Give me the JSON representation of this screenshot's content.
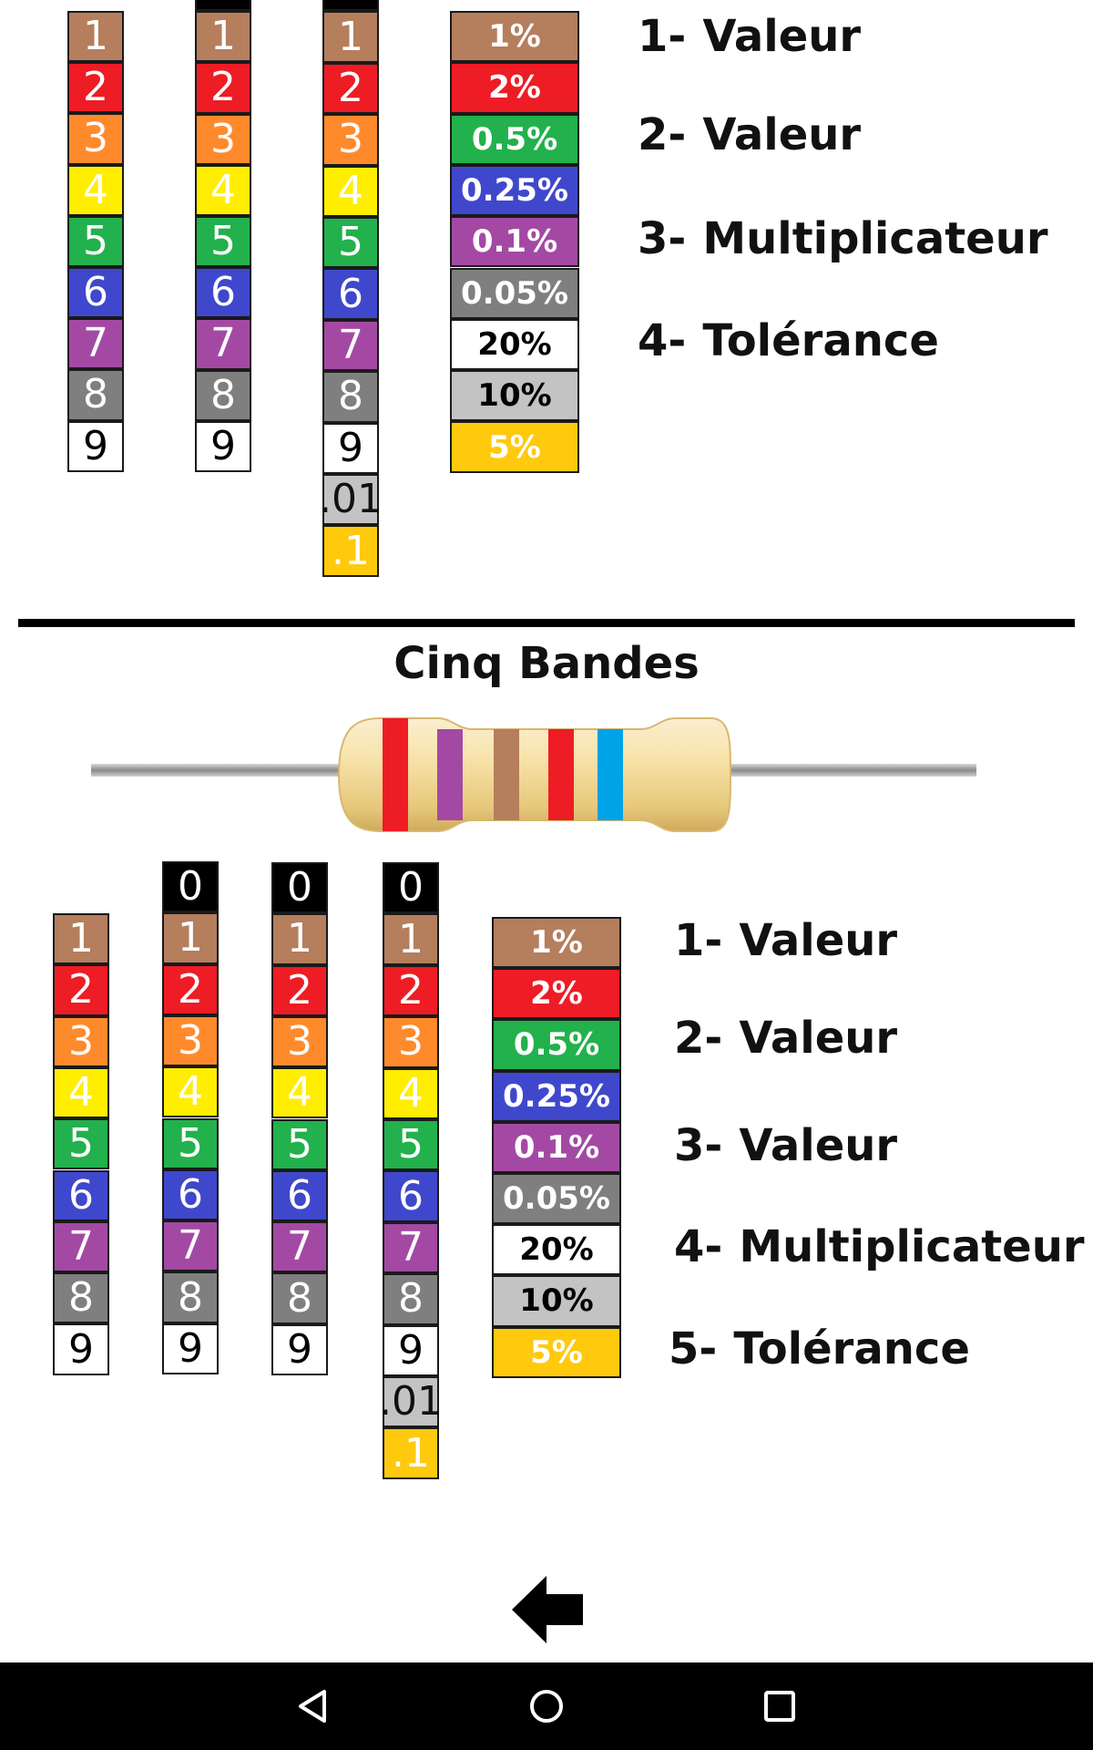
{
  "digit_bands": [
    {
      "label": "0",
      "bg": "#000000",
      "fg": "#ffffff"
    },
    {
      "label": "1",
      "bg": "#b57e5d",
      "fg": "#ffffff"
    },
    {
      "label": "2",
      "bg": "#ee1c25",
      "fg": "#ffffff"
    },
    {
      "label": "3",
      "bg": "#ff8a2c",
      "fg": "#ffffff"
    },
    {
      "label": "4",
      "bg": "#ffee00",
      "fg": "#ffffff"
    },
    {
      "label": "5",
      "bg": "#22b14c",
      "fg": "#ffffff"
    },
    {
      "label": "6",
      "bg": "#3f48cc",
      "fg": "#ffffff"
    },
    {
      "label": "7",
      "bg": "#a349a4",
      "fg": "#ffffff"
    },
    {
      "label": "8",
      "bg": "#7f7f7f",
      "fg": "#ffffff"
    },
    {
      "label": "9",
      "bg": "#ffffff",
      "fg": "#000000"
    }
  ],
  "multiplier_extra_bands": [
    {
      "label": ".01",
      "bg": "#c3c3c3",
      "fg": "#111111"
    },
    {
      "label": ".1",
      "bg": "#ffc90e",
      "fg": "#ffffff"
    }
  ],
  "tolerance_bands": [
    {
      "label": "1%",
      "bg": "#b57e5d",
      "fg": "#ffffff"
    },
    {
      "label": "2%",
      "bg": "#ee1c25",
      "fg": "#ffffff"
    },
    {
      "label": "0.5%",
      "bg": "#22b14c",
      "fg": "#ffffff"
    },
    {
      "label": "0.25%",
      "bg": "#3f48cc",
      "fg": "#ffffff"
    },
    {
      "label": "0.1%",
      "bg": "#a349a4",
      "fg": "#ffffff"
    },
    {
      "label": "0.05%",
      "bg": "#7f7f7f",
      "fg": "#ffffff"
    },
    {
      "label": "20%",
      "bg": "#ffffff",
      "fg": "#000000"
    },
    {
      "label": "10%",
      "bg": "#c3c3c3",
      "fg": "#000000"
    },
    {
      "label": "5%",
      "bg": "#ffc90e",
      "fg": "#ffffff"
    }
  ],
  "four_band": {
    "legend": [
      {
        "num": "1-",
        "text": "Valeur"
      },
      {
        "num": "2-",
        "text": "Valeur"
      },
      {
        "num": "3-",
        "text": "Multiplicateur"
      },
      {
        "num": "4-",
        "text": "Tolérance"
      }
    ]
  },
  "five_band": {
    "title": "Cinq Bandes",
    "legend": [
      {
        "num": "1-",
        "text": "Valeur"
      },
      {
        "num": "2-",
        "text": "Valeur"
      },
      {
        "num": "3-",
        "text": "Valeur"
      },
      {
        "num": "4-",
        "text": "Multiplicateur"
      },
      {
        "num": "5-",
        "text": "Tolérance"
      }
    ],
    "resistor_bands": [
      "#ee1c25",
      "#a349a4",
      "#b57e5d",
      "#ee1c25",
      "#00a2e8"
    ]
  },
  "icons": {
    "back": "back-arrow-icon",
    "nav_back": "nav-back-icon",
    "nav_home": "nav-home-icon",
    "nav_recents": "nav-recents-icon"
  }
}
